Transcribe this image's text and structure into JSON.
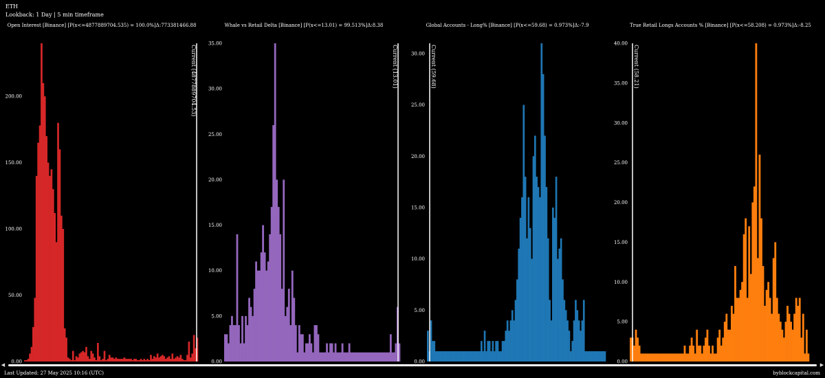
{
  "header": {
    "symbol": "ETH",
    "lookback": "Lookback: 1 Day | 5 min timeframe"
  },
  "footer": {
    "last_updated": "Last Updated: 27 May 2025 10:16 (UTC)",
    "brand": "byblockcapital.com"
  },
  "colors": {
    "background": "#000000",
    "red": "#d62728",
    "purple": "#9467bd",
    "blue": "#1f77b4",
    "orange": "#ff7f0e"
  },
  "chart_data": [
    {
      "type": "bar",
      "title": "Open Interest [Binance] [P(x<=4877889704.535) = 100.0%]Δ:773381466.88",
      "color": "#d62728",
      "ylim": [
        0,
        240
      ],
      "yticks": [
        0,
        50,
        100,
        150,
        200
      ],
      "ytick_labels": [
        "0.00",
        "50.00",
        "100.00",
        "150.00",
        "200.00"
      ],
      "current_label": "Current (4877889704.53)",
      "current_position": "right",
      "values": [
        1,
        1,
        2,
        6,
        11,
        26,
        48,
        140,
        165,
        178,
        240,
        210,
        200,
        170,
        150,
        140,
        145,
        130,
        112,
        90,
        180,
        160,
        110,
        100,
        25,
        18,
        3,
        2,
        1,
        8,
        1,
        4,
        3,
        6,
        7,
        8,
        7,
        11,
        4,
        2,
        8,
        6,
        3,
        1,
        14,
        4,
        1,
        2,
        8,
        1,
        2,
        5,
        3,
        3,
        2,
        3,
        2,
        2,
        2,
        2,
        3,
        2,
        2,
        2,
        2,
        1,
        2,
        2,
        1,
        1,
        2,
        1,
        2,
        1,
        2,
        1,
        5,
        2,
        4,
        3,
        6,
        3,
        4,
        5,
        4,
        2,
        3,
        4,
        2,
        6,
        2,
        3,
        4,
        3,
        5,
        2,
        1,
        1,
        5,
        15,
        3,
        6,
        20,
        10,
        18
      ]
    },
    {
      "type": "bar",
      "title": "Whale vs Retail Delta [Binance] [P(x<=13.01) = 99.513%]Δ:8.38",
      "color": "#9467bd",
      "ylim": [
        0,
        35
      ],
      "yticks": [
        0,
        5,
        10,
        15,
        20,
        25,
        30,
        35
      ],
      "ytick_labels": [
        "0.00",
        "5.00",
        "10.00",
        "15.00",
        "20.00",
        "25.00",
        "30.00",
        "35.00"
      ],
      "current_label": "Current (13.01)",
      "current_position": "right",
      "values": [
        3,
        3,
        2,
        4,
        5,
        4,
        4,
        14,
        4,
        2,
        5,
        2,
        5,
        4,
        7,
        6,
        5,
        8,
        11,
        10,
        10,
        12,
        15,
        12,
        10,
        11,
        14,
        17,
        26,
        35,
        20,
        17,
        14,
        8,
        20,
        5,
        6,
        8,
        4,
        10,
        7,
        4,
        1,
        4,
        3,
        3,
        1,
        2,
        2,
        3,
        2,
        1,
        4,
        4,
        3,
        1,
        1,
        1,
        1,
        2,
        1,
        2,
        2,
        1,
        2,
        1,
        1,
        1,
        2,
        1,
        1,
        1,
        2,
        1,
        1,
        1,
        1,
        1,
        1,
        1,
        1,
        1,
        1,
        1,
        1,
        1,
        1,
        1,
        1,
        1,
        1,
        1,
        1,
        1,
        1,
        1,
        3,
        1,
        1,
        2,
        6,
        2
      ]
    },
    {
      "type": "bar",
      "title": "Global Accounts - Long% [Binance] [P(x<=59.68) = 0.973%]Δ:-7.9",
      "color": "#1f77b4",
      "ylim": [
        0,
        31
      ],
      "yticks": [
        0,
        5,
        10,
        15,
        20,
        25,
        30
      ],
      "ytick_labels": [
        "0.00",
        "5.00",
        "10.00",
        "15.00",
        "20.00",
        "25.00",
        "30.00"
      ],
      "current_label": "Current (59.68)",
      "current_position": "left",
      "values": [
        3,
        1,
        4,
        2,
        2,
        1,
        1,
        1,
        1,
        1,
        1,
        1,
        1,
        1,
        1,
        1,
        1,
        1,
        1,
        1,
        1,
        1,
        1,
        1,
        1,
        1,
        1,
        1,
        1,
        1,
        1,
        1,
        1,
        2,
        1,
        3,
        1,
        2,
        2,
        1,
        2,
        1,
        2,
        2,
        1,
        1,
        2,
        2,
        3,
        4,
        3,
        4,
        5,
        4,
        6,
        8,
        11,
        14,
        16,
        25,
        18,
        12,
        16,
        13,
        10,
        20,
        22,
        18,
        17,
        16,
        31,
        28,
        22,
        17,
        12,
        6,
        4,
        15,
        14,
        18,
        10,
        11,
        12,
        8,
        6,
        5,
        4,
        3,
        1,
        2,
        4,
        6,
        5,
        4,
        3,
        4,
        6,
        1,
        1,
        1,
        1,
        1,
        1,
        1,
        1,
        1,
        1,
        1,
        1,
        1
      ]
    },
    {
      "type": "bar",
      "title": "True Retail Longs Accounts % [Binance] [P(x<=58.208) = 0.973%]Δ:-8.25",
      "color": "#ff7f0e",
      "ylim": [
        0,
        40
      ],
      "yticks": [
        0,
        5,
        10,
        15,
        20,
        25,
        30,
        35,
        40
      ],
      "ytick_labels": [
        "0.00",
        "5.00",
        "10.00",
        "15.00",
        "20.00",
        "25.00",
        "30.00",
        "35.00",
        "40.00"
      ],
      "current_label": "Current (58.21)",
      "current_position": "left",
      "values": [
        3,
        3,
        2,
        4,
        3,
        2,
        1,
        1,
        1,
        1,
        1,
        1,
        1,
        1,
        1,
        1,
        1,
        1,
        1,
        1,
        1,
        1,
        1,
        1,
        1,
        1,
        1,
        1,
        1,
        1,
        1,
        2,
        1,
        1,
        2,
        3,
        2,
        1,
        4,
        2,
        2,
        1,
        2,
        3,
        4,
        2,
        1,
        2,
        1,
        1,
        3,
        4,
        2,
        3,
        5,
        6,
        4,
        4,
        7,
        6,
        12,
        8,
        8,
        9,
        10,
        16,
        18,
        8,
        17,
        11,
        20,
        22,
        40,
        13,
        26,
        18,
        12,
        7,
        9,
        10,
        8,
        6,
        13,
        15,
        8,
        6,
        5,
        4,
        3,
        5,
        7,
        6,
        5,
        4,
        6,
        8,
        7,
        8,
        3,
        6,
        1,
        4,
        1
      ]
    }
  ]
}
